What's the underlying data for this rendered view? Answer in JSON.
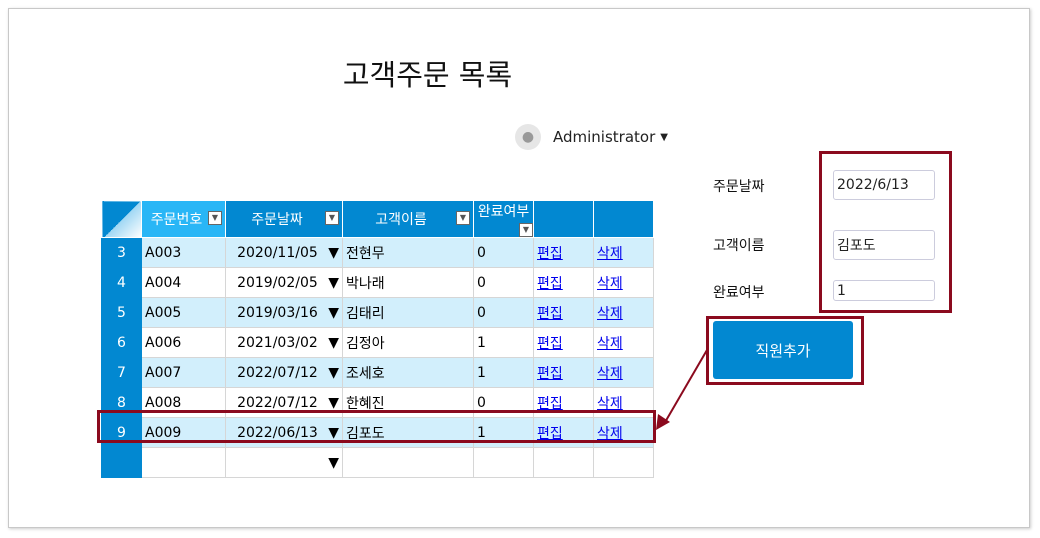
{
  "title": "고객주문 목록",
  "user": {
    "name": "Administrator",
    "icon": "user-icon"
  },
  "grid": {
    "columns": [
      "주문번호",
      "주문날짜",
      "고객이름",
      "완료여부",
      "",
      ""
    ],
    "rows": [
      {
        "no": "3",
        "id": "A003",
        "date": "2020/11/05",
        "name": "전현무",
        "done": "0",
        "edit": "편집",
        "del": "삭제"
      },
      {
        "no": "4",
        "id": "A004",
        "date": "2019/02/05",
        "name": "박나래",
        "done": "0",
        "edit": "편집",
        "del": "삭제"
      },
      {
        "no": "5",
        "id": "A005",
        "date": "2019/03/16",
        "name": "김태리",
        "done": "0",
        "edit": "편집",
        "del": "삭제"
      },
      {
        "no": "6",
        "id": "A006",
        "date": "2021/03/02",
        "name": "김정아",
        "done": "1",
        "edit": "편집",
        "del": "삭제"
      },
      {
        "no": "7",
        "id": "A007",
        "date": "2022/07/12",
        "name": "조세호",
        "done": "1",
        "edit": "편집",
        "del": "삭제"
      },
      {
        "no": "8",
        "id": "A008",
        "date": "2022/07/12",
        "name": "한혜진",
        "done": "0",
        "edit": "편집",
        "del": "삭제"
      },
      {
        "no": "9",
        "id": "A009",
        "date": "2022/06/13",
        "name": "김포도",
        "done": "1",
        "edit": "편집",
        "del": "삭제"
      }
    ]
  },
  "form": {
    "date_label": "주문날짜",
    "date_value": "2022/6/13",
    "name_label": "고객이름",
    "name_value": "김포도",
    "done_label": "완료여부",
    "done_value": "1",
    "submit_label": "직원추가"
  },
  "colors": {
    "accent": "#0288d1",
    "highlight": "#8b0a1e",
    "row_alt": "#d2effc"
  }
}
